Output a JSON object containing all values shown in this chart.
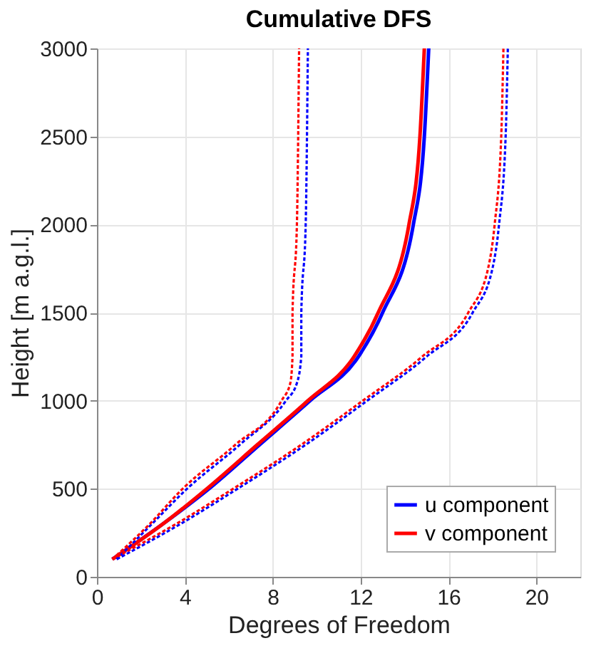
{
  "chart_data": {
    "type": "line",
    "title": "Cumulative DFS",
    "xlabel": "Degrees of Freedom",
    "ylabel": "Height [m a.g.l.]",
    "xlim": [
      0,
      22
    ],
    "xticks": [
      0,
      4,
      8,
      12,
      16,
      20
    ],
    "ylim": [
      0,
      3000
    ],
    "yticks": [
      0,
      500,
      1000,
      1500,
      2000,
      2500,
      3000
    ],
    "grid": true,
    "legend": "bottom right",
    "marker": "none",
    "series": [
      {
        "name": "u component",
        "color": "#0000ff",
        "line_style": "solid",
        "x": [
          0.7,
          3.0,
          5.1,
          7.4,
          9.7,
          11.9,
          13.0,
          14.4,
          14.9,
          15.1
        ],
        "values": [
          100,
          300,
          500,
          750,
          1000,
          1250,
          1500,
          2000,
          2500,
          3000
        ]
      },
      {
        "name": "v component",
        "color": "#ff0000",
        "line_style": "solid",
        "x": [
          0.7,
          3.0,
          5.0,
          7.3,
          9.6,
          11.7,
          12.8,
          14.2,
          14.7,
          14.9
        ],
        "values": [
          100,
          300,
          500,
          750,
          1000,
          1250,
          1500,
          2000,
          2500,
          3000
        ]
      },
      {
        "color": "#0000ff",
        "line_style": "dashed",
        "x": [
          0.9,
          2.5,
          4.1,
          6.5,
          8.6,
          9.1,
          9.3,
          9.3,
          9.5,
          9.6
        ],
        "values": [
          100,
          300,
          500,
          750,
          1000,
          1100,
          1250,
          1500,
          2000,
          3000
        ]
      },
      {
        "color": "#ff0000",
        "line_style": "dashed",
        "x": [
          0.7,
          2.4,
          3.9,
          6.3,
          8.4,
          8.8,
          8.9,
          8.9,
          9.1,
          9.2
        ],
        "values": [
          100,
          300,
          500,
          750,
          1000,
          1100,
          1250,
          1500,
          2000,
          3000
        ]
      },
      {
        "color": "#0000ff",
        "line_style": "dashed",
        "x": [
          0.9,
          3.8,
          6.4,
          9.5,
          12.3,
          15.0,
          17.1,
          18.0,
          18.3,
          18.6,
          18.7
        ],
        "values": [
          100,
          300,
          500,
          750,
          1000,
          1250,
          1500,
          1750,
          2000,
          2500,
          3000
        ]
      },
      {
        "color": "#ff0000",
        "line_style": "dashed",
        "x": [
          0.7,
          3.6,
          6.2,
          9.3,
          12.1,
          14.8,
          16.9,
          17.8,
          18.1,
          18.4,
          18.5
        ],
        "values": [
          100,
          300,
          500,
          750,
          1000,
          1250,
          1500,
          1750,
          2000,
          2500,
          3000
        ]
      }
    ]
  }
}
